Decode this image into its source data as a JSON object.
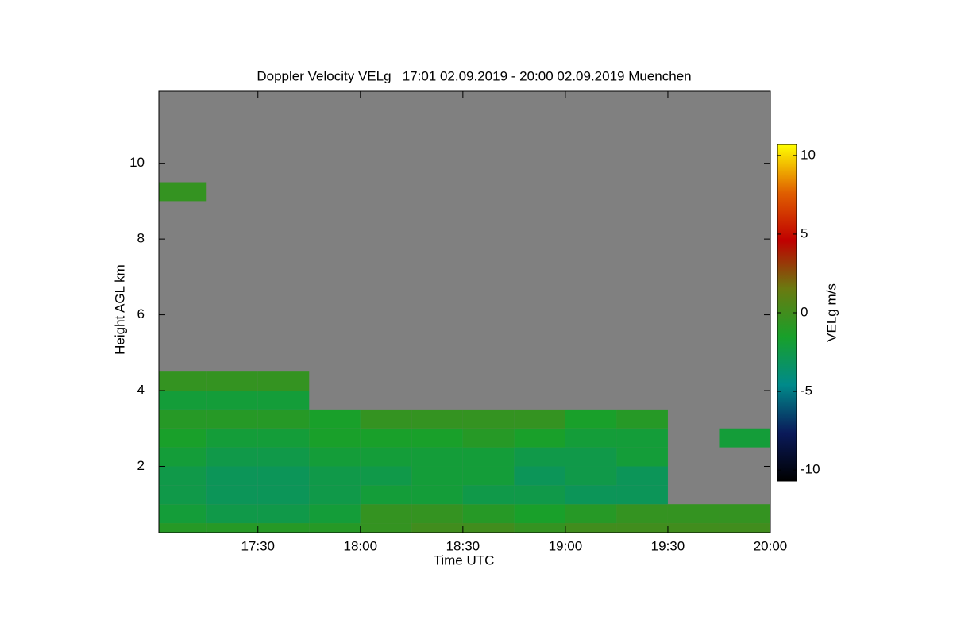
{
  "chart_data": {
    "type": "heatmap",
    "title": "Doppler Velocity VELg   17:01 02.09.2019 - 20:00 02.09.2019 Muenchen",
    "x_label": "Time UTC",
    "y_label": "Height AGL km",
    "colorbar_label": "VELg m/s",
    "xlim": [
      "17:01",
      "20:00"
    ],
    "xticks": [
      "17:30",
      "18:00",
      "18:30",
      "19:00",
      "19:30",
      "20:00"
    ],
    "ylim": [
      0.25,
      11.9
    ],
    "yticks": [
      2,
      4,
      6,
      8,
      10
    ],
    "zlim": [
      -10.7,
      10.7
    ],
    "zticks": [
      -10,
      -5,
      0,
      5,
      10
    ],
    "colormap": [
      "#000000",
      "#0a1a5a",
      "#008a8a",
      "#18a02a",
      "#6a7a10",
      "#c00000",
      "#e06000",
      "#ffff00"
    ],
    "missing_color": "#808080",
    "x_bins": [
      "17:00",
      "17:15",
      "17:30",
      "17:45",
      "18:00",
      "18:15",
      "18:30",
      "18:45",
      "19:00",
      "19:15",
      "19:30",
      "19:45",
      "20:00"
    ],
    "y_bins": [
      0.25,
      0.5,
      1,
      1.5,
      2,
      2.5,
      3,
      3.5,
      4,
      4.5,
      9,
      9.5,
      11.9
    ],
    "values": [
      [
        -1,
        -1,
        -1,
        -1,
        -0.5,
        0,
        0,
        -0.5,
        0,
        0,
        0,
        0
      ],
      [
        -2,
        -2.5,
        -2.5,
        -2,
        -0.5,
        -0.5,
        -1,
        -1.5,
        -1,
        -0.5,
        -0.5,
        -0.5
      ],
      [
        -2.5,
        -3,
        -3,
        -2.5,
        -2,
        -2,
        -2.5,
        -2.5,
        -3,
        -3,
        null,
        null
      ],
      [
        -2.5,
        -3,
        -3,
        -2.5,
        -2.5,
        -2,
        -2,
        -3,
        -2.5,
        -3,
        null,
        null
      ],
      [
        -2,
        -2.5,
        -2.5,
        -2,
        -2,
        -2,
        -2,
        -2.5,
        -2.5,
        -2,
        null,
        null
      ],
      [
        -1.5,
        -2,
        -2,
        -1.5,
        -1.5,
        -1.5,
        -1,
        -1.5,
        -2,
        -2,
        null,
        -2
      ],
      [
        -1,
        -1,
        -1,
        -1.5,
        -0.5,
        -0.5,
        -0.5,
        -0.5,
        -1.5,
        -1,
        null,
        null
      ],
      [
        -2,
        -2,
        -2,
        null,
        null,
        null,
        null,
        null,
        null,
        null,
        null,
        null
      ],
      [
        -0.5,
        -0.5,
        -0.5,
        null,
        null,
        null,
        null,
        null,
        null,
        null,
        null,
        null
      ],
      [
        null,
        null,
        null,
        null,
        null,
        null,
        null,
        null,
        null,
        null,
        null,
        null
      ],
      [
        -0.5,
        null,
        null,
        null,
        null,
        null,
        null,
        null,
        null,
        null,
        null,
        null
      ],
      [
        null,
        null,
        null,
        null,
        null,
        null,
        null,
        null,
        null,
        null,
        null,
        null
      ]
    ]
  }
}
